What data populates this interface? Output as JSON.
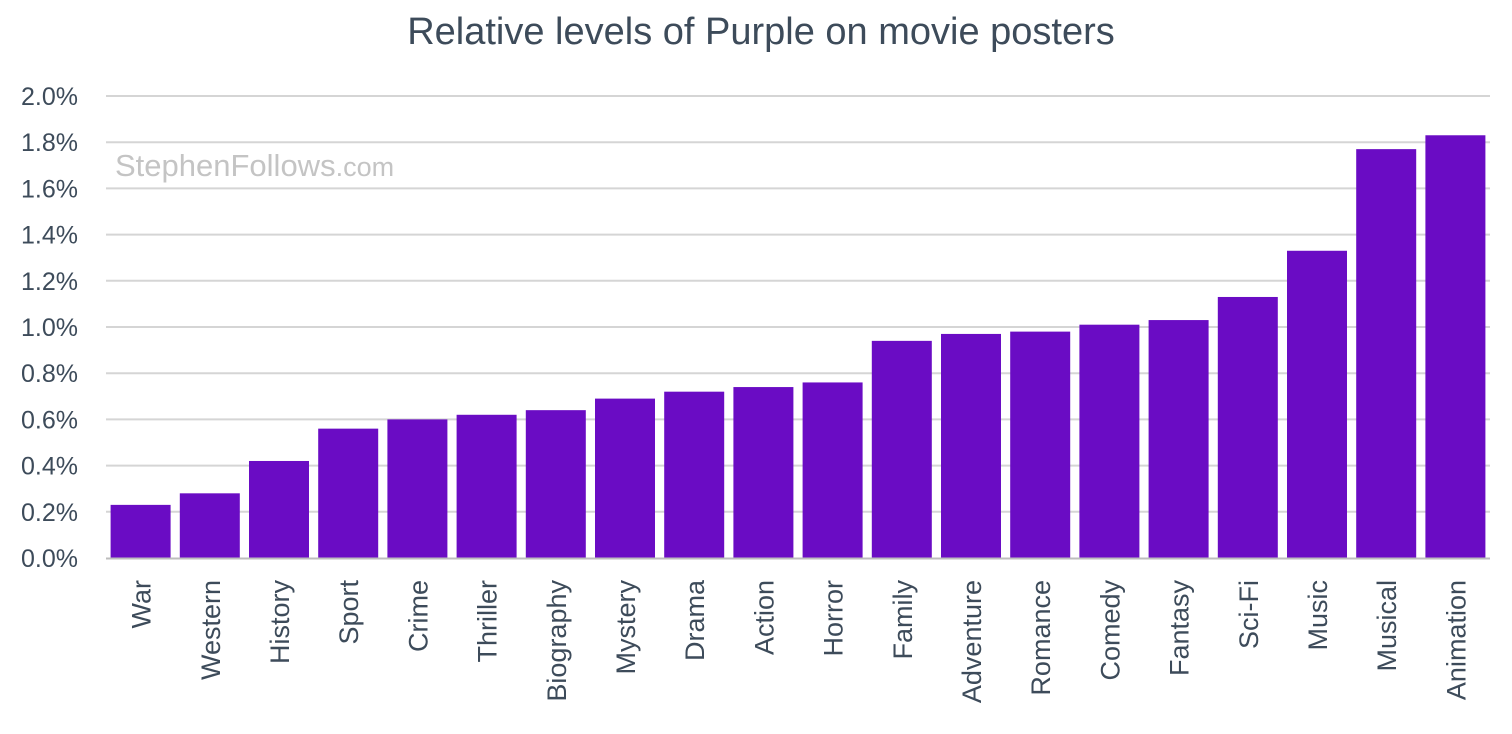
{
  "watermark": {
    "name": "StephenFollows",
    "suffix": ".com"
  },
  "chart_data": {
    "type": "bar",
    "title": "Relative levels of Purple on movie posters",
    "xlabel": "",
    "ylabel": "",
    "categories": [
      "War",
      "Western",
      "History",
      "Sport",
      "Crime",
      "Thriller",
      "Biography",
      "Mystery",
      "Drama",
      "Action",
      "Horror",
      "Family",
      "Adventure",
      "Romance",
      "Comedy",
      "Fantasy",
      "Sci-Fi",
      "Music",
      "Musical",
      "Animation"
    ],
    "values": [
      0.23,
      0.28,
      0.42,
      0.56,
      0.6,
      0.62,
      0.64,
      0.69,
      0.72,
      0.74,
      0.76,
      0.94,
      0.97,
      0.98,
      1.01,
      1.03,
      1.13,
      1.33,
      1.77,
      1.83
    ],
    "unit": "%",
    "ylim": [
      0,
      2.0
    ],
    "yticks": [
      "0.0%",
      "0.2%",
      "0.4%",
      "0.6%",
      "0.8%",
      "1.0%",
      "1.2%",
      "1.4%",
      "1.6%",
      "1.8%",
      "2.0%"
    ],
    "grid": true,
    "legend": "none",
    "bar_color": "#6a0cc4",
    "grid_color": "#d5d5d5",
    "text_color": "#3d4b5a",
    "watermark_color": "#c4c4c4"
  }
}
